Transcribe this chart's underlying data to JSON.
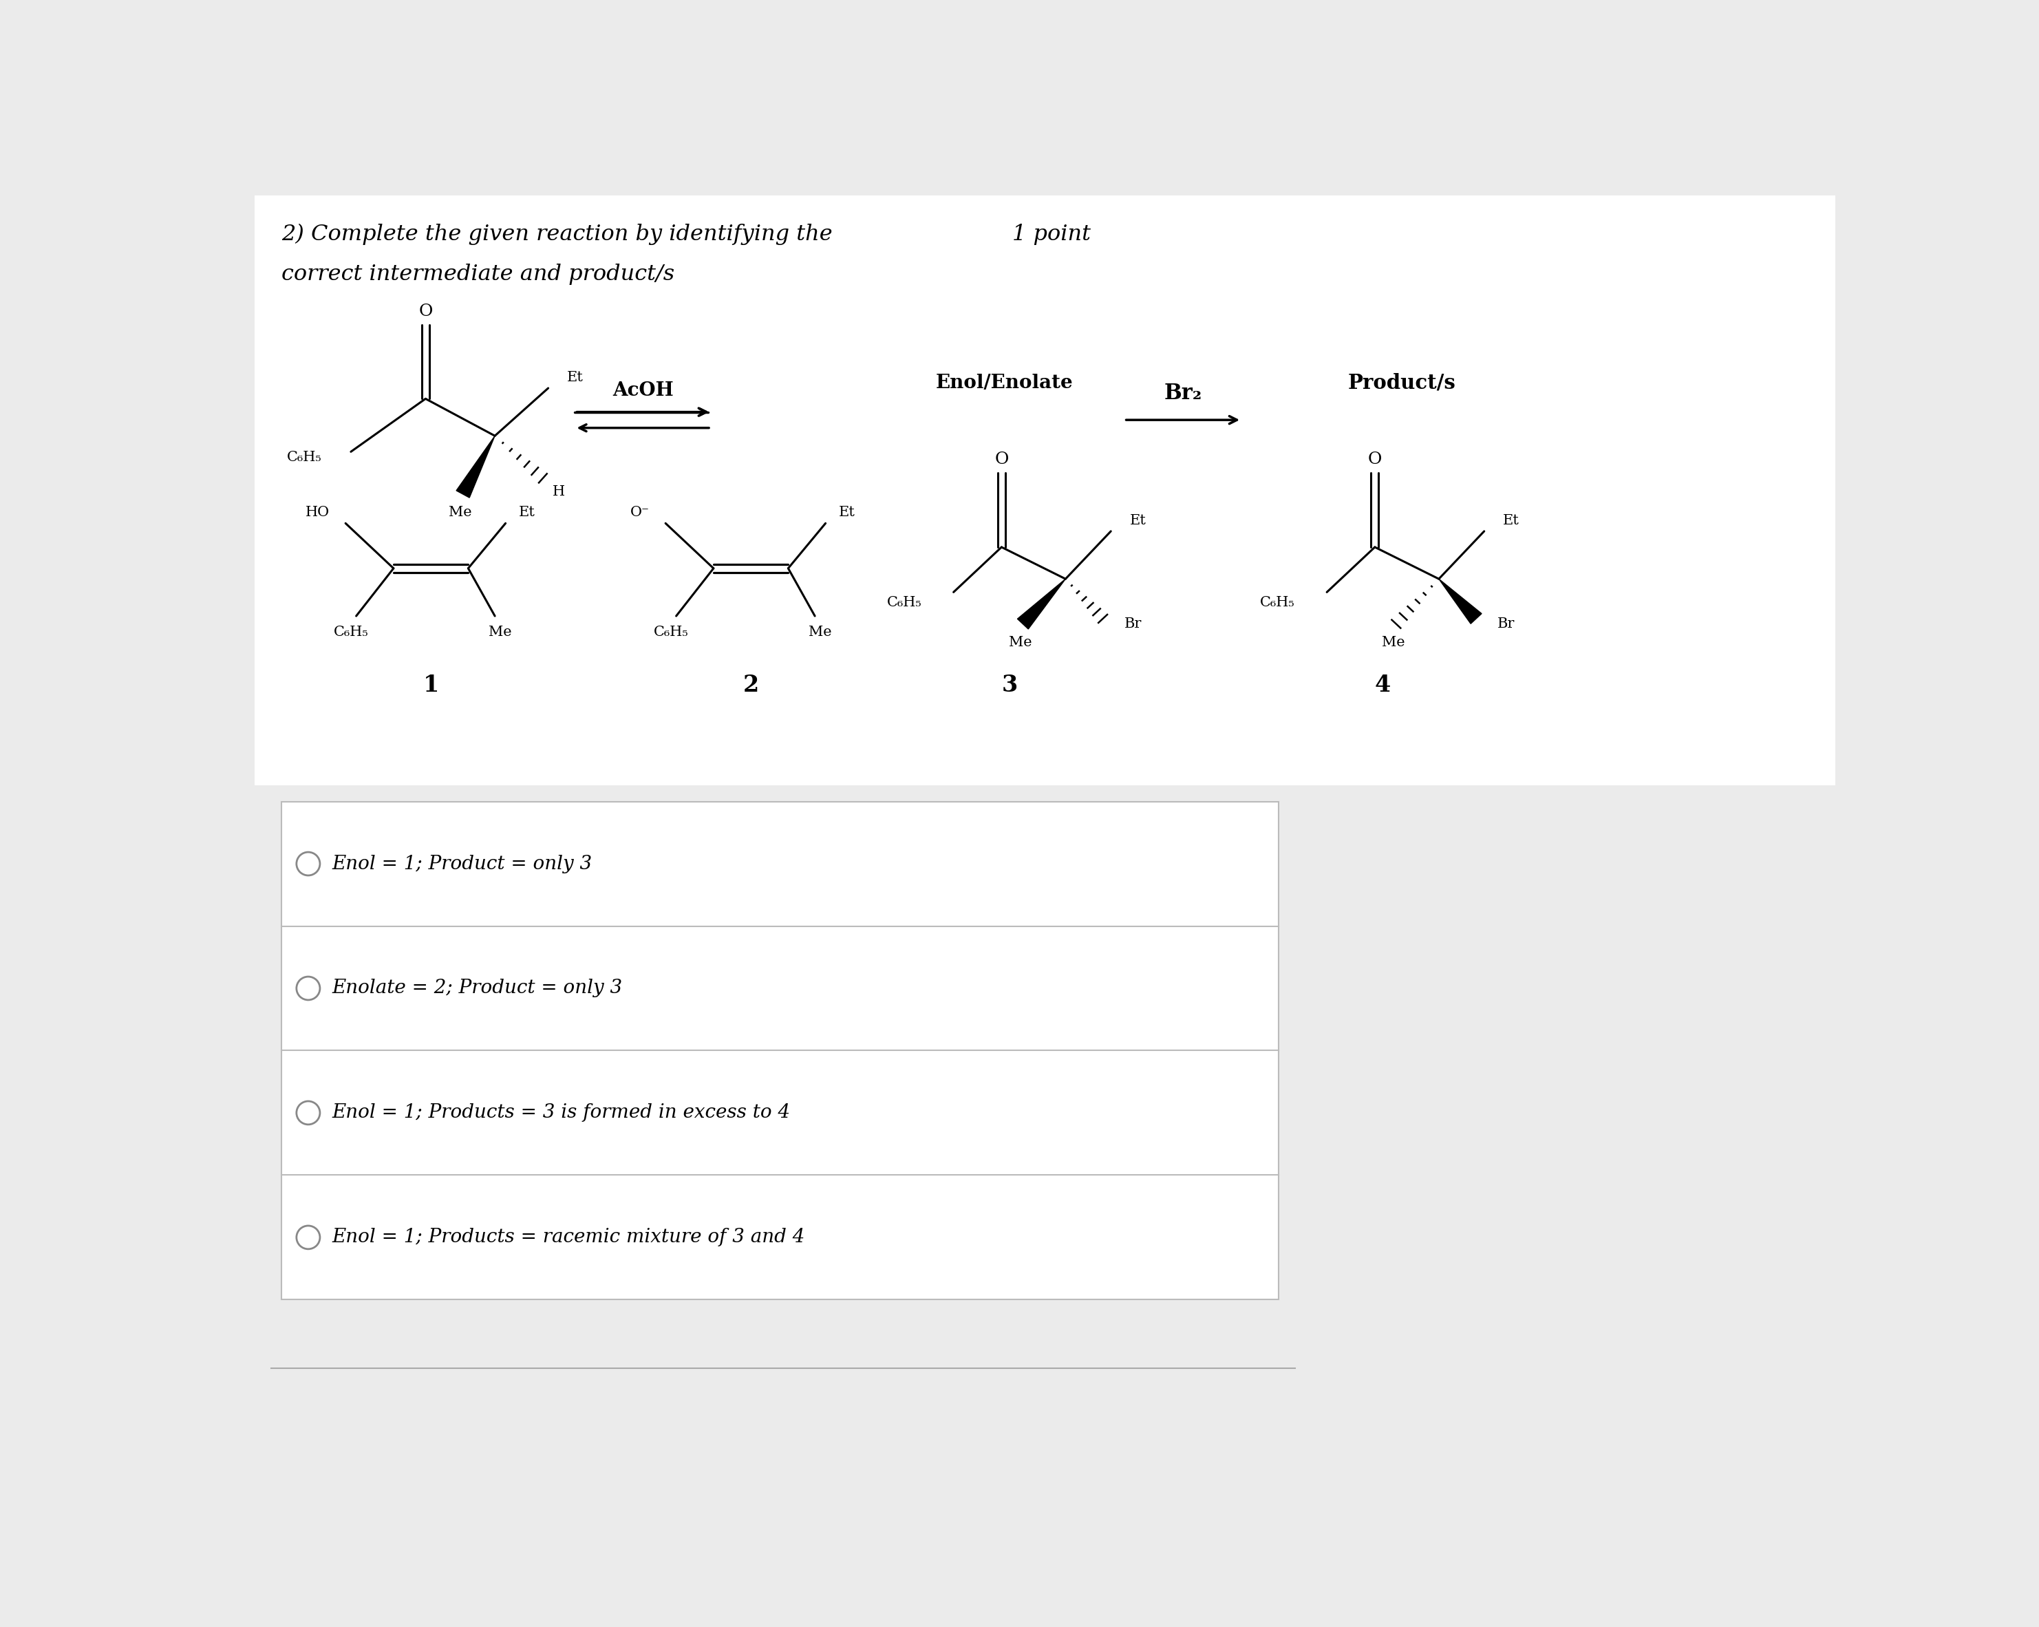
{
  "title1": "2) Complete the given reaction by identifying the",
  "title2": "correct intermediate and product/s",
  "points": "1 point",
  "bg_color": "#ebebeb",
  "white": "#ffffff",
  "acoh_label": "AcOH",
  "enol_label": "Enol/Enolate",
  "br2_label": "Br₂",
  "product_label": "Product/s",
  "num_labels": [
    "1",
    "2",
    "3",
    "4"
  ],
  "choices": [
    "Enol = 1; Product = only 3",
    "Enolate = 2; Product = only 3",
    "Enol = 1; Products = 3 is formed in excess to 4",
    "Enol = 1; Products = racemic mixture of 3 and 4"
  ]
}
